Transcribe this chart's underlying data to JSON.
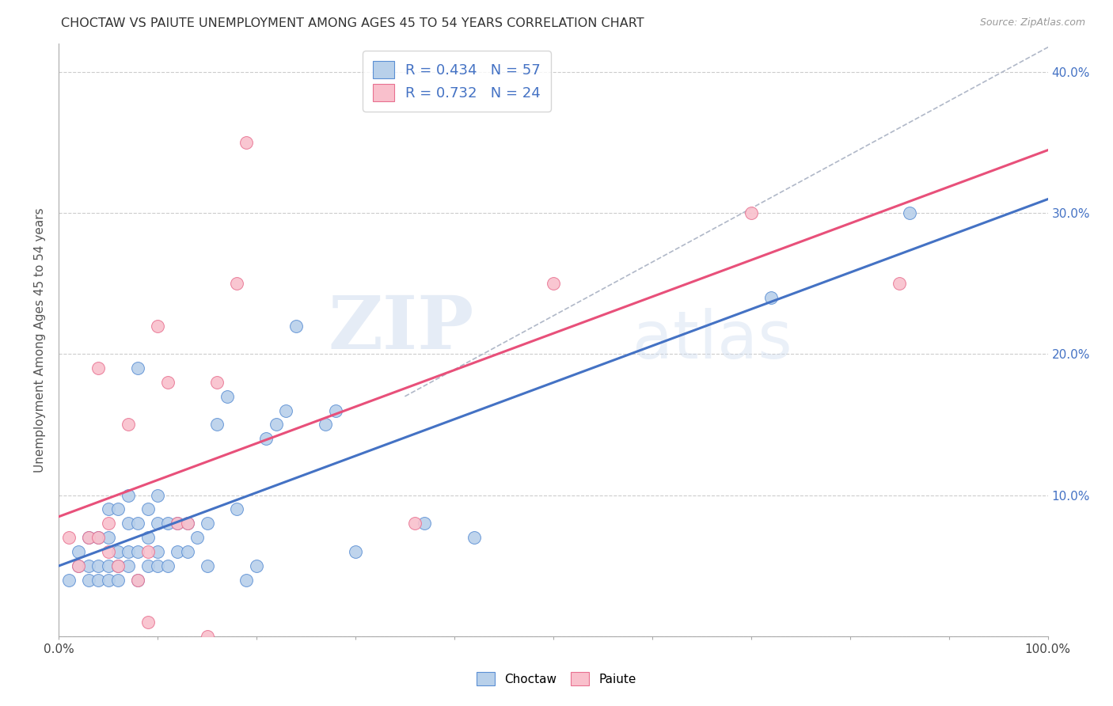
{
  "title": "CHOCTAW VS PAIUTE UNEMPLOYMENT AMONG AGES 45 TO 54 YEARS CORRELATION CHART",
  "source": "Source: ZipAtlas.com",
  "ylabel": "Unemployment Among Ages 45 to 54 years",
  "xlim": [
    0,
    1.0
  ],
  "ylim": [
    0,
    0.42
  ],
  "xticks": [
    0.0,
    0.1,
    0.2,
    0.3,
    0.4,
    0.5,
    0.6,
    0.7,
    0.8,
    0.9,
    1.0
  ],
  "yticks": [
    0.0,
    0.1,
    0.2,
    0.3,
    0.4
  ],
  "ytick_labels": [
    "",
    "10.0%",
    "20.0%",
    "30.0%",
    "40.0%"
  ],
  "xtick_labels": [
    "0.0%",
    "",
    "",
    "",
    "",
    "",
    "",
    "",
    "",
    "",
    "100.0%"
  ],
  "choctaw_fill": "#b8d0ea",
  "paiute_fill": "#f9c0cc",
  "choctaw_edge": "#5b8fd4",
  "paiute_edge": "#e87090",
  "choctaw_line": "#4472c4",
  "paiute_line": "#e8507a",
  "legend_r_choctaw": "R = 0.434",
  "legend_n_choctaw": "N = 57",
  "legend_r_paiute": "R = 0.732",
  "legend_n_paiute": "N = 24",
  "watermark_zip": "ZIP",
  "watermark_atlas": "atlas",
  "background_color": "#ffffff",
  "grid_color": "#cccccc",
  "choctaw_x": [
    0.01,
    0.02,
    0.02,
    0.03,
    0.03,
    0.03,
    0.04,
    0.04,
    0.04,
    0.05,
    0.05,
    0.05,
    0.05,
    0.06,
    0.06,
    0.06,
    0.06,
    0.07,
    0.07,
    0.07,
    0.07,
    0.08,
    0.08,
    0.08,
    0.08,
    0.09,
    0.09,
    0.09,
    0.1,
    0.1,
    0.1,
    0.1,
    0.11,
    0.11,
    0.12,
    0.12,
    0.13,
    0.13,
    0.14,
    0.15,
    0.15,
    0.16,
    0.17,
    0.18,
    0.19,
    0.2,
    0.21,
    0.22,
    0.23,
    0.24,
    0.27,
    0.28,
    0.3,
    0.37,
    0.42,
    0.72,
    0.86
  ],
  "choctaw_y": [
    0.04,
    0.05,
    0.06,
    0.04,
    0.05,
    0.07,
    0.04,
    0.05,
    0.07,
    0.04,
    0.05,
    0.07,
    0.09,
    0.04,
    0.05,
    0.06,
    0.09,
    0.05,
    0.06,
    0.08,
    0.1,
    0.04,
    0.06,
    0.08,
    0.19,
    0.05,
    0.07,
    0.09,
    0.05,
    0.06,
    0.08,
    0.1,
    0.05,
    0.08,
    0.06,
    0.08,
    0.06,
    0.08,
    0.07,
    0.05,
    0.08,
    0.15,
    0.17,
    0.09,
    0.04,
    0.05,
    0.14,
    0.15,
    0.16,
    0.22,
    0.15,
    0.16,
    0.06,
    0.08,
    0.07,
    0.24,
    0.3
  ],
  "paiute_x": [
    0.01,
    0.02,
    0.03,
    0.04,
    0.04,
    0.05,
    0.05,
    0.06,
    0.07,
    0.08,
    0.09,
    0.09,
    0.1,
    0.11,
    0.12,
    0.13,
    0.15,
    0.16,
    0.18,
    0.19,
    0.36,
    0.5,
    0.7,
    0.85
  ],
  "paiute_y": [
    0.07,
    0.05,
    0.07,
    0.07,
    0.19,
    0.06,
    0.08,
    0.05,
    0.15,
    0.04,
    0.06,
    0.01,
    0.22,
    0.18,
    0.08,
    0.08,
    0.0,
    0.18,
    0.25,
    0.35,
    0.08,
    0.25,
    0.3,
    0.25
  ]
}
